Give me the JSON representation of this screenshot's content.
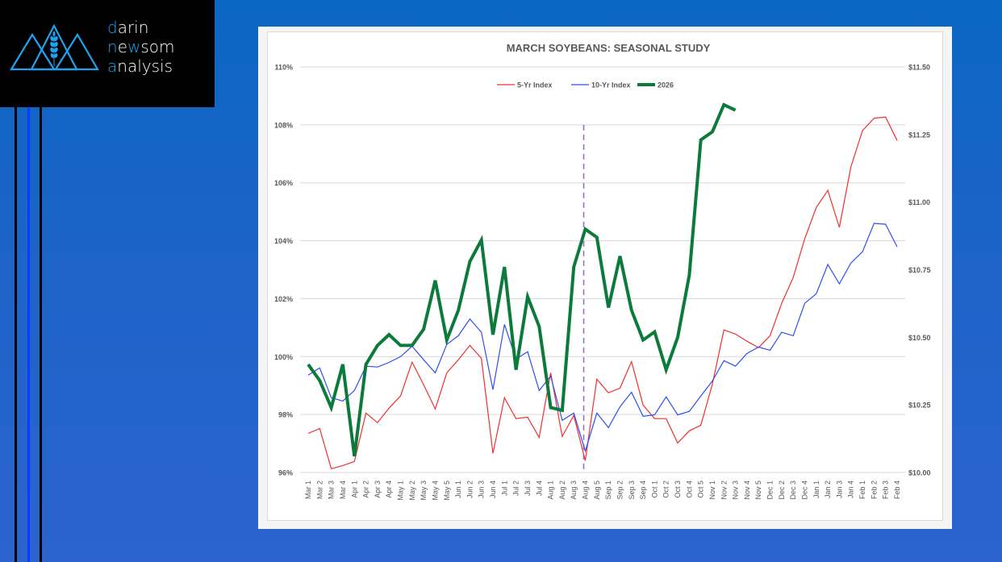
{
  "logo": {
    "line1_first": "d",
    "line1_rest": "arin",
    "line2_first": "n",
    "line2_mid": "e",
    "line2_hl": "w",
    "line2_rest": "som",
    "line3_first": "a",
    "line3_rest": "nalysis",
    "accent_color": "#1fa3f0"
  },
  "chart_data": {
    "type": "line",
    "title": "MARCH SOYBEANS: SEASONAL STUDY",
    "xlabel": "",
    "ylabel_left": "",
    "ylabel_right": "",
    "categories": [
      "Mar 1",
      "Mar 2",
      "Mar 3",
      "Mar 4",
      "Apr 1",
      "Apr 2",
      "Apr 3",
      "Apr 4",
      "May 1",
      "May 2",
      "May 3",
      "May 4",
      "May 5",
      "Jun 1",
      "Jun 2",
      "Jun 3",
      "Jun 4",
      "Jul 1",
      "Jul 2",
      "Jul 3",
      "Jul 4",
      "Aug 1",
      "Aug 2",
      "Aug 3",
      "Aug 4",
      "Aug 5",
      "Sep 1",
      "Sep 2",
      "Sep 3",
      "Sep 4",
      "Oct 1",
      "Oct 2",
      "Oct 3",
      "Oct 4",
      "Oct 5",
      "Nov 1",
      "Nov 2",
      "Nov 3",
      "Nov 4",
      "Nov 5",
      "Dec 1",
      "Dec 2",
      "Dec 3",
      "Dec 4",
      "Jan 1",
      "Jan 2",
      "Jan 3",
      "Jan 4",
      "Feb 1",
      "Feb 2",
      "Feb 3",
      "Feb 4"
    ],
    "y_left": {
      "min": 96,
      "max": 110,
      "step": 2,
      "tick_labels": [
        "96%",
        "98%",
        "100%",
        "102%",
        "104%",
        "106%",
        "108%",
        "110%"
      ]
    },
    "y_right": {
      "min": 10.0,
      "max": 11.5,
      "step": 0.25,
      "tick_labels": [
        "$10.00",
        "$10.25",
        "$10.50",
        "$10.75",
        "$11.00",
        "$11.25",
        "$11.50"
      ]
    },
    "grid": true,
    "legend_position": "top-center",
    "marker": {
      "category": "Aug 4",
      "style": "dashed-vertical",
      "color": "#9b6fc7"
    },
    "series": [
      {
        "name": "5-Yr Index",
        "axis": "left",
        "color": "#f0302f",
        "values": [
          97.35,
          97.52,
          96.13,
          96.24,
          96.38,
          98.05,
          97.72,
          98.22,
          98.64,
          99.81,
          99.03,
          98.19,
          99.44,
          99.89,
          100.39,
          99.94,
          96.66,
          98.58,
          97.86,
          97.91,
          97.21,
          99.44,
          97.24,
          97.97,
          96.41,
          99.22,
          98.75,
          98.91,
          99.83,
          98.33,
          97.86,
          97.86,
          97.02,
          97.44,
          97.63,
          99.05,
          100.92,
          100.78,
          100.53,
          100.31,
          100.72,
          101.84,
          102.73,
          104.07,
          105.15,
          105.74,
          104.46,
          106.55,
          107.8,
          108.23,
          108.27,
          107.46
        ]
      },
      {
        "name": "10-Yr Index",
        "axis": "left",
        "color": "#2d4ff0",
        "values": [
          99.36,
          99.61,
          98.58,
          98.47,
          98.83,
          99.67,
          99.64,
          99.8,
          100.0,
          100.36,
          99.89,
          99.44,
          100.42,
          100.72,
          101.3,
          100.84,
          98.86,
          101.11,
          99.92,
          100.17,
          98.83,
          99.33,
          97.8,
          98.05,
          96.74,
          98.05,
          97.55,
          98.27,
          98.77,
          97.94,
          97.99,
          98.61,
          97.99,
          98.11,
          98.64,
          99.16,
          99.86,
          99.67,
          100.11,
          100.33,
          100.22,
          100.84,
          100.72,
          101.84,
          102.17,
          103.18,
          102.51,
          103.23,
          103.62,
          104.6,
          104.57,
          103.79
        ]
      },
      {
        "name": "2026",
        "axis": "right",
        "color": "#0b7a3b",
        "values": [
          10.4,
          10.34,
          10.24,
          10.4,
          10.06,
          10.4,
          10.47,
          10.51,
          10.47,
          10.47,
          10.53,
          10.71,
          10.49,
          10.6,
          10.78,
          10.86,
          10.51,
          10.76,
          10.38,
          10.65,
          10.54,
          10.24,
          10.23,
          10.76,
          10.9,
          10.87,
          10.61,
          10.8,
          10.6,
          10.49,
          10.52,
          10.38,
          10.5,
          10.73,
          11.23,
          11.26,
          11.36,
          11.34,
          null,
          null,
          null,
          null,
          null,
          null,
          null,
          null,
          null,
          null,
          null,
          null,
          null,
          null
        ]
      }
    ]
  }
}
